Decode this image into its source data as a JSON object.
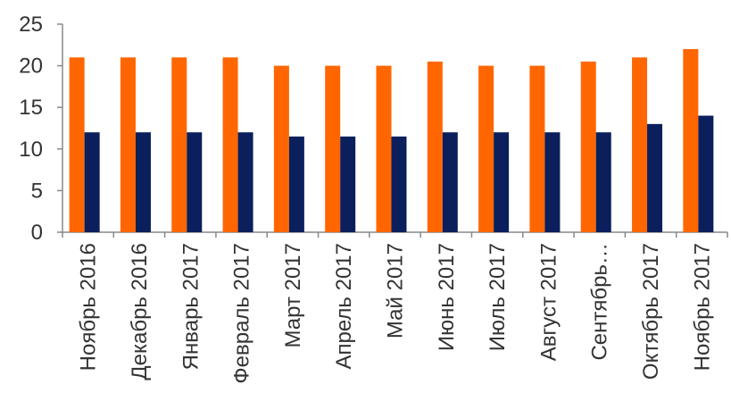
{
  "chart_data": {
    "type": "bar",
    "categories": [
      "Ноябрь 2016",
      "Декабрь 2016",
      "Январь 2017",
      "Февраль 2017",
      "Март 2017",
      "Апрель 2017",
      "Май 2017",
      "Июнь 2017",
      "Июль 2017",
      "Август 2017",
      "Сентябрь…",
      "Октябрь 2017",
      "Ноябрь 2017"
    ],
    "series": [
      {
        "values": [
          21,
          21,
          21,
          21,
          20,
          20,
          20,
          20.5,
          20,
          20,
          20.5,
          21,
          22
        ],
        "color": "#FF6600"
      },
      {
        "values": [
          12,
          12,
          12,
          12,
          11.5,
          11.5,
          11.5,
          12,
          12,
          12,
          12,
          13,
          14
        ],
        "color": "#0A1F5C"
      }
    ],
    "yticks": [
      0,
      5,
      10,
      15,
      20,
      25
    ],
    "ylim": [
      0,
      25
    ],
    "grid": false,
    "legend": "none"
  }
}
